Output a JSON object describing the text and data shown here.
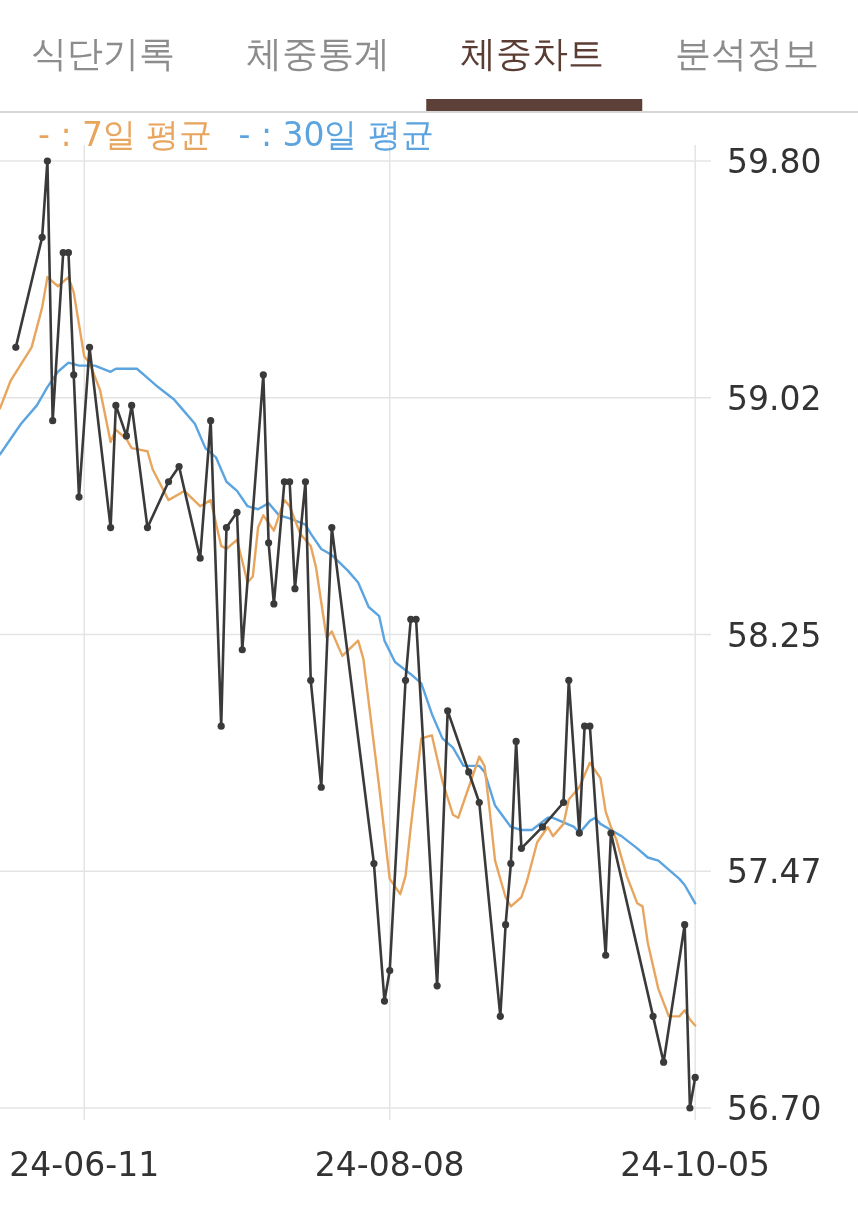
{
  "chart_data": {
    "type": "line",
    "annotations": [
      "식단기록",
      "체중통계",
      "체중차트",
      "분석정보"
    ],
    "xlim": [
      "--05-26",
      "--10-08"
    ],
    "xticks": [
      {
        "value": "--06-11",
        "label": "24-06-11"
      },
      {
        "value": "--08-08",
        "label": "24-08-08"
      },
      {
        "value": "--10-05",
        "label": "24-10-05"
      }
    ],
    "ylim": [
      56.7,
      59.8
    ],
    "yticks": [
      {
        "value": 56.7,
        "label": "56.70"
      },
      {
        "value": 57.475,
        "label": "57.47"
      },
      {
        "value": 58.25,
        "label": "58.25"
      },
      {
        "value": 59.025,
        "label": "59.02"
      },
      {
        "value": 59.8,
        "label": "59.80"
      }
    ],
    "grid": true,
    "legend": "top left",
    "line_style": "solid",
    "series": [
      {
        "color": "#3a3a3a",
        "marker": "circle",
        "x": [
          "--05-29",
          "--06-03",
          "--06-04",
          "--06-05",
          "--06-07",
          "--06-08",
          "--06-09",
          "--06-10",
          "--06-12",
          "--06-16",
          "--06-17",
          "--06-19",
          "--06-20",
          "--06-23",
          "--06-27",
          "--06-29",
          "--07-03",
          "--07-05",
          "--07-07",
          "--07-08",
          "--07-10",
          "--07-11",
          "--07-15",
          "--07-16",
          "--07-17",
          "--07-19",
          "--07-20",
          "--07-21",
          "--07-23",
          "--07-24",
          "--07-26",
          "--07-28",
          "--08-05",
          "--08-07",
          "--08-08",
          "--08-11",
          "--08-12",
          "--08-13",
          "--08-17",
          "--08-19",
          "--08-23",
          "--08-25",
          "--08-29",
          "--08-30",
          "--08-31",
          "--09-01",
          "--09-02",
          "--09-06",
          "--09-10",
          "--09-11",
          "--09-13",
          "--09-14",
          "--09-15",
          "--09-18",
          "--09-19",
          "--09-27",
          "--09-29",
          "--10-03",
          "--10-04",
          "--10-05"
        ],
        "values": [
          59.19,
          59.55,
          59.8,
          58.95,
          59.5,
          59.5,
          59.1,
          58.7,
          59.19,
          58.6,
          59.0,
          58.9,
          59.0,
          58.6,
          58.75,
          58.8,
          58.5,
          58.95,
          57.95,
          58.6,
          58.65,
          58.2,
          59.1,
          58.55,
          58.35,
          58.75,
          58.75,
          58.4,
          58.75,
          58.1,
          57.75,
          58.6,
          57.5,
          57.05,
          57.15,
          58.1,
          58.3,
          58.3,
          57.1,
          58.0,
          57.8,
          57.7,
          57.0,
          57.3,
          57.5,
          57.9,
          57.55,
          57.62,
          57.7,
          58.1,
          57.6,
          57.95,
          57.95,
          57.2,
          57.6,
          57.0,
          56.85,
          57.3,
          56.7,
          56.8
        ]
      },
      {
        "name": "- : 7일 평균",
        "color": "#e8a55e",
        "marker": "none",
        "x": [
          "--05-26",
          "--05-28",
          "--06-01",
          "--06-03",
          "--06-04",
          "--06-06",
          "--06-08",
          "--06-09",
          "--06-11",
          "--06-12",
          "--06-14",
          "--06-16",
          "--06-17",
          "--06-19",
          "--06-20",
          "--06-23",
          "--06-24",
          "--06-27",
          "--06-30",
          "--07-03",
          "--07-05",
          "--07-07",
          "--07-08",
          "--07-10",
          "--07-12",
          "--07-13",
          "--07-14",
          "--07-15",
          "--07-17",
          "--07-19",
          "--07-20",
          "--07-22",
          "--07-24",
          "--07-25",
          "--07-27",
          "--07-28",
          "--07-30",
          "--08-02",
          "--08-03",
          "--08-06",
          "--08-08",
          "--08-10",
          "--08-11",
          "--08-12",
          "--08-14",
          "--08-16",
          "--08-18",
          "--08-20",
          "--08-21",
          "--08-23",
          "--08-25",
          "--08-26",
          "--08-27",
          "--08-28",
          "--08-30",
          "--08-31",
          "--09-02",
          "--09-03",
          "--09-05",
          "--09-07",
          "--09-08",
          "--09-10",
          "--09-11",
          "--09-13",
          "--09-15",
          "--09-17",
          "--09-18",
          "--09-19",
          "--09-20",
          "--09-22",
          "--09-24",
          "--09-25",
          "--09-26",
          "--09-28",
          "--09-30",
          "--10-02",
          "--10-03",
          "--10-04",
          "--10-05"
        ],
        "values": [
          58.99,
          59.08,
          59.19,
          59.32,
          59.42,
          59.39,
          59.42,
          59.37,
          59.16,
          59.14,
          59.05,
          58.88,
          58.92,
          58.89,
          58.86,
          58.85,
          58.79,
          58.69,
          58.72,
          58.67,
          58.69,
          58.54,
          58.53,
          58.56,
          58.42,
          58.44,
          58.6,
          58.64,
          58.59,
          58.69,
          58.67,
          58.58,
          58.54,
          58.47,
          58.24,
          58.26,
          58.18,
          58.23,
          58.17,
          57.75,
          57.45,
          57.4,
          57.46,
          57.62,
          57.91,
          57.92,
          57.77,
          57.66,
          57.65,
          57.75,
          57.85,
          57.82,
          57.67,
          57.51,
          57.39,
          57.36,
          57.39,
          57.44,
          57.57,
          57.62,
          57.59,
          57.63,
          57.71,
          57.75,
          57.83,
          57.78,
          57.67,
          57.62,
          57.58,
          57.46,
          57.37,
          57.36,
          57.24,
          57.09,
          57.0,
          57.0,
          57.02,
          56.99,
          56.97
        ]
      },
      {
        "name": "- : 30일 평균",
        "color": "#5ba4e0",
        "marker": "none",
        "x": [
          "--05-26",
          "--05-28",
          "--05-30",
          "--06-02",
          "--06-04",
          "--06-06",
          "--06-08",
          "--06-10",
          "--06-13",
          "--06-16",
          "--06-17",
          "--06-21",
          "--06-23",
          "--06-25",
          "--06-28",
          "--06-29",
          "--07-02",
          "--07-04",
          "--07-06",
          "--07-08",
          "--07-10",
          "--07-12",
          "--07-14",
          "--07-16",
          "--07-18",
          "--07-20",
          "--07-23",
          "--07-24",
          "--07-26",
          "--07-28",
          "--07-31",
          "--08-02",
          "--08-04",
          "--08-06",
          "--08-07",
          "--08-09",
          "--08-12",
          "--08-14",
          "--08-16",
          "--08-18",
          "--08-20",
          "--08-22",
          "--08-25",
          "--08-26",
          "--08-28",
          "--08-31",
          "--09-02",
          "--09-04",
          "--09-07",
          "--09-08",
          "--09-12",
          "--09-13",
          "--09-15",
          "--09-16",
          "--09-17",
          "--09-19",
          "--09-21",
          "--09-24",
          "--09-26",
          "--09-28",
          "--10-02",
          "--10-03",
          "--10-05"
        ],
        "values": [
          58.84,
          58.89,
          58.94,
          59.0,
          59.06,
          59.11,
          59.14,
          59.13,
          59.13,
          59.11,
          59.12,
          59.12,
          59.09,
          59.06,
          59.02,
          59.0,
          58.94,
          58.86,
          58.83,
          58.75,
          58.72,
          58.67,
          58.66,
          58.68,
          58.64,
          58.63,
          58.61,
          58.58,
          58.53,
          58.51,
          58.46,
          58.42,
          58.34,
          58.31,
          58.23,
          58.16,
          58.12,
          58.09,
          57.99,
          57.91,
          57.88,
          57.82,
          57.82,
          57.8,
          57.69,
          57.62,
          57.61,
          57.61,
          57.65,
          57.65,
          57.62,
          57.6,
          57.64,
          57.65,
          57.63,
          57.61,
          57.59,
          57.55,
          57.52,
          57.51,
          57.45,
          57.43,
          57.37
        ]
      }
    ]
  }
}
